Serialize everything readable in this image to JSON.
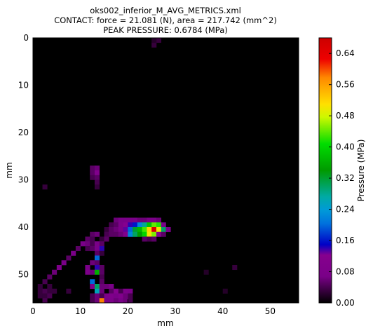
{
  "chart_data": {
    "type": "heatmap",
    "title_lines": [
      "oks002_inferior_M_AVG_METRICS.xml",
      "CONTACT: force = 21.081 (N), area = 217.742 (mm^2)",
      "PEAK PRESSURE: 0.6784 (MPa)"
    ],
    "xlabel": "mm",
    "ylabel": "mm",
    "colorbar_label": "Pressure (MPa)",
    "xlim": [
      0,
      56
    ],
    "ylim": [
      56,
      0
    ],
    "x_ticks": [
      0,
      10,
      20,
      30,
      40,
      50
    ],
    "y_ticks": [
      0,
      10,
      20,
      30,
      40,
      50
    ],
    "colorbar_range": [
      0,
      0.68
    ],
    "colorbar_ticks": [
      "0.00",
      "0.08",
      "0.16",
      "0.24",
      "0.32",
      "0.40",
      "0.48",
      "0.56",
      "0.64"
    ],
    "colormap": "nipy_spectral",
    "background_color": "#000000",
    "cell_size_mm": 1,
    "cells": [
      [
        26,
        0,
        0.03
      ],
      [
        25,
        1,
        0.03
      ],
      [
        25,
        0,
        0.02
      ],
      [
        12,
        27,
        0.05
      ],
      [
        13,
        27,
        0.06
      ],
      [
        12,
        28,
        0.05
      ],
      [
        13,
        28,
        0.1
      ],
      [
        12,
        29,
        0.04
      ],
      [
        13,
        29,
        0.05
      ],
      [
        13,
        30,
        0.04
      ],
      [
        2,
        31,
        0.03
      ],
      [
        13,
        31,
        0.03
      ],
      [
        17,
        38,
        0.06
      ],
      [
        18,
        38,
        0.07
      ],
      [
        19,
        38,
        0.07
      ],
      [
        20,
        38,
        0.07
      ],
      [
        21,
        38,
        0.07
      ],
      [
        22,
        38,
        0.06
      ],
      [
        23,
        38,
        0.06
      ],
      [
        24,
        38,
        0.07
      ],
      [
        25,
        38,
        0.07
      ],
      [
        26,
        38,
        0.06
      ],
      [
        16,
        39,
        0.04
      ],
      [
        17,
        39,
        0.05
      ],
      [
        18,
        39,
        0.08
      ],
      [
        19,
        39,
        0.12
      ],
      [
        20,
        39,
        0.14
      ],
      [
        21,
        39,
        0.16
      ],
      [
        22,
        39,
        0.22
      ],
      [
        23,
        39,
        0.28
      ],
      [
        24,
        39,
        0.38
      ],
      [
        25,
        39,
        0.44
      ],
      [
        26,
        39,
        0.42
      ],
      [
        27,
        39,
        0.07
      ],
      [
        15,
        40,
        0.03
      ],
      [
        16,
        40,
        0.05
      ],
      [
        17,
        40,
        0.06
      ],
      [
        18,
        40,
        0.08
      ],
      [
        19,
        40,
        0.13
      ],
      [
        20,
        40,
        0.2
      ],
      [
        21,
        40,
        0.32
      ],
      [
        22,
        40,
        0.37
      ],
      [
        23,
        40,
        0.43
      ],
      [
        24,
        40,
        0.52
      ],
      [
        25,
        40,
        0.66
      ],
      [
        26,
        40,
        0.5
      ],
      [
        27,
        40,
        0.3
      ],
      [
        28,
        40,
        0.07
      ],
      [
        12,
        41,
        0.05
      ],
      [
        13,
        41,
        0.06
      ],
      [
        15,
        41,
        0.04
      ],
      [
        16,
        41,
        0.05
      ],
      [
        17,
        41,
        0.05
      ],
      [
        18,
        41,
        0.06
      ],
      [
        19,
        41,
        0.1
      ],
      [
        20,
        41,
        0.22
      ],
      [
        21,
        41,
        0.3
      ],
      [
        22,
        41,
        0.34
      ],
      [
        23,
        41,
        0.4
      ],
      [
        24,
        41,
        0.5
      ],
      [
        25,
        41,
        0.45
      ],
      [
        26,
        41,
        0.12
      ],
      [
        27,
        41,
        0.05
      ],
      [
        11,
        42,
        0.05
      ],
      [
        12,
        42,
        0.04
      ],
      [
        14,
        42,
        0.03
      ],
      [
        15,
        42,
        0.05
      ],
      [
        23,
        42,
        0.05
      ],
      [
        24,
        42,
        0.04
      ],
      [
        25,
        42,
        0.05
      ],
      [
        10,
        43,
        0.07
      ],
      [
        11,
        43,
        0.06
      ],
      [
        12,
        43,
        0.04
      ],
      [
        13,
        43,
        0.07
      ],
      [
        14,
        43,
        0.05
      ],
      [
        9,
        44,
        0.05
      ],
      [
        11,
        44,
        0.04
      ],
      [
        12,
        44,
        0.05
      ],
      [
        13,
        44,
        0.07
      ],
      [
        14,
        44,
        0.14
      ],
      [
        8,
        45,
        0.07
      ],
      [
        13,
        45,
        0.05
      ],
      [
        14,
        45,
        0.03
      ],
      [
        7,
        46,
        0.05
      ],
      [
        13,
        46,
        0.2
      ],
      [
        6,
        47,
        0.07
      ],
      [
        12,
        47,
        0.06
      ],
      [
        13,
        47,
        0.05
      ],
      [
        5,
        48,
        0.08
      ],
      [
        11,
        48,
        0.07
      ],
      [
        13,
        48,
        0.14
      ],
      [
        14,
        48,
        0.05
      ],
      [
        4,
        49,
        0.06
      ],
      [
        11,
        49,
        0.08
      ],
      [
        12,
        49,
        0.06
      ],
      [
        13,
        49,
        0.36
      ],
      [
        14,
        49,
        0.05
      ],
      [
        36,
        49,
        0.02
      ],
      [
        42,
        48,
        0.03
      ],
      [
        3,
        50,
        0.05
      ],
      [
        14,
        50,
        0.04
      ],
      [
        2,
        51,
        0.04
      ],
      [
        12,
        51,
        0.2
      ],
      [
        14,
        51,
        0.05
      ],
      [
        1,
        52,
        0.03
      ],
      [
        3,
        52,
        0.03
      ],
      [
        12,
        52,
        0.08
      ],
      [
        13,
        52,
        0.3
      ],
      [
        14,
        52,
        0.06
      ],
      [
        15,
        52,
        0.06
      ],
      [
        16,
        52,
        0.07
      ],
      [
        1,
        53,
        0.03
      ],
      [
        2,
        53,
        0.04
      ],
      [
        3,
        53,
        0.03
      ],
      [
        4,
        53,
        0.03
      ],
      [
        7,
        53,
        0.03
      ],
      [
        13,
        53,
        0.26
      ],
      [
        14,
        53,
        0.06
      ],
      [
        16,
        53,
        0.05
      ],
      [
        17,
        53,
        0.12
      ],
      [
        18,
        53,
        0.04
      ],
      [
        19,
        53,
        0.08
      ],
      [
        20,
        53,
        0.07
      ],
      [
        40,
        53,
        0.02
      ],
      [
        1,
        54,
        0.03
      ],
      [
        2,
        54,
        0.03
      ],
      [
        3,
        54,
        0.04
      ],
      [
        12,
        54,
        0.04
      ],
      [
        13,
        54,
        0.06
      ],
      [
        14,
        54,
        0.04
      ],
      [
        15,
        54,
        0.08
      ],
      [
        16,
        54,
        0.09
      ],
      [
        17,
        54,
        0.07
      ],
      [
        18,
        54,
        0.1
      ],
      [
        19,
        54,
        0.06
      ],
      [
        20,
        54,
        0.04
      ],
      [
        2,
        55,
        0.04
      ],
      [
        12,
        55,
        0.04
      ],
      [
        13,
        55,
        0.06
      ],
      [
        14,
        55,
        0.58
      ],
      [
        15,
        55,
        0.07
      ],
      [
        16,
        55,
        0.08
      ],
      [
        17,
        55,
        0.06
      ],
      [
        18,
        55,
        0.07
      ],
      [
        19,
        55,
        0.06
      ],
      [
        20,
        55,
        0.04
      ]
    ]
  }
}
